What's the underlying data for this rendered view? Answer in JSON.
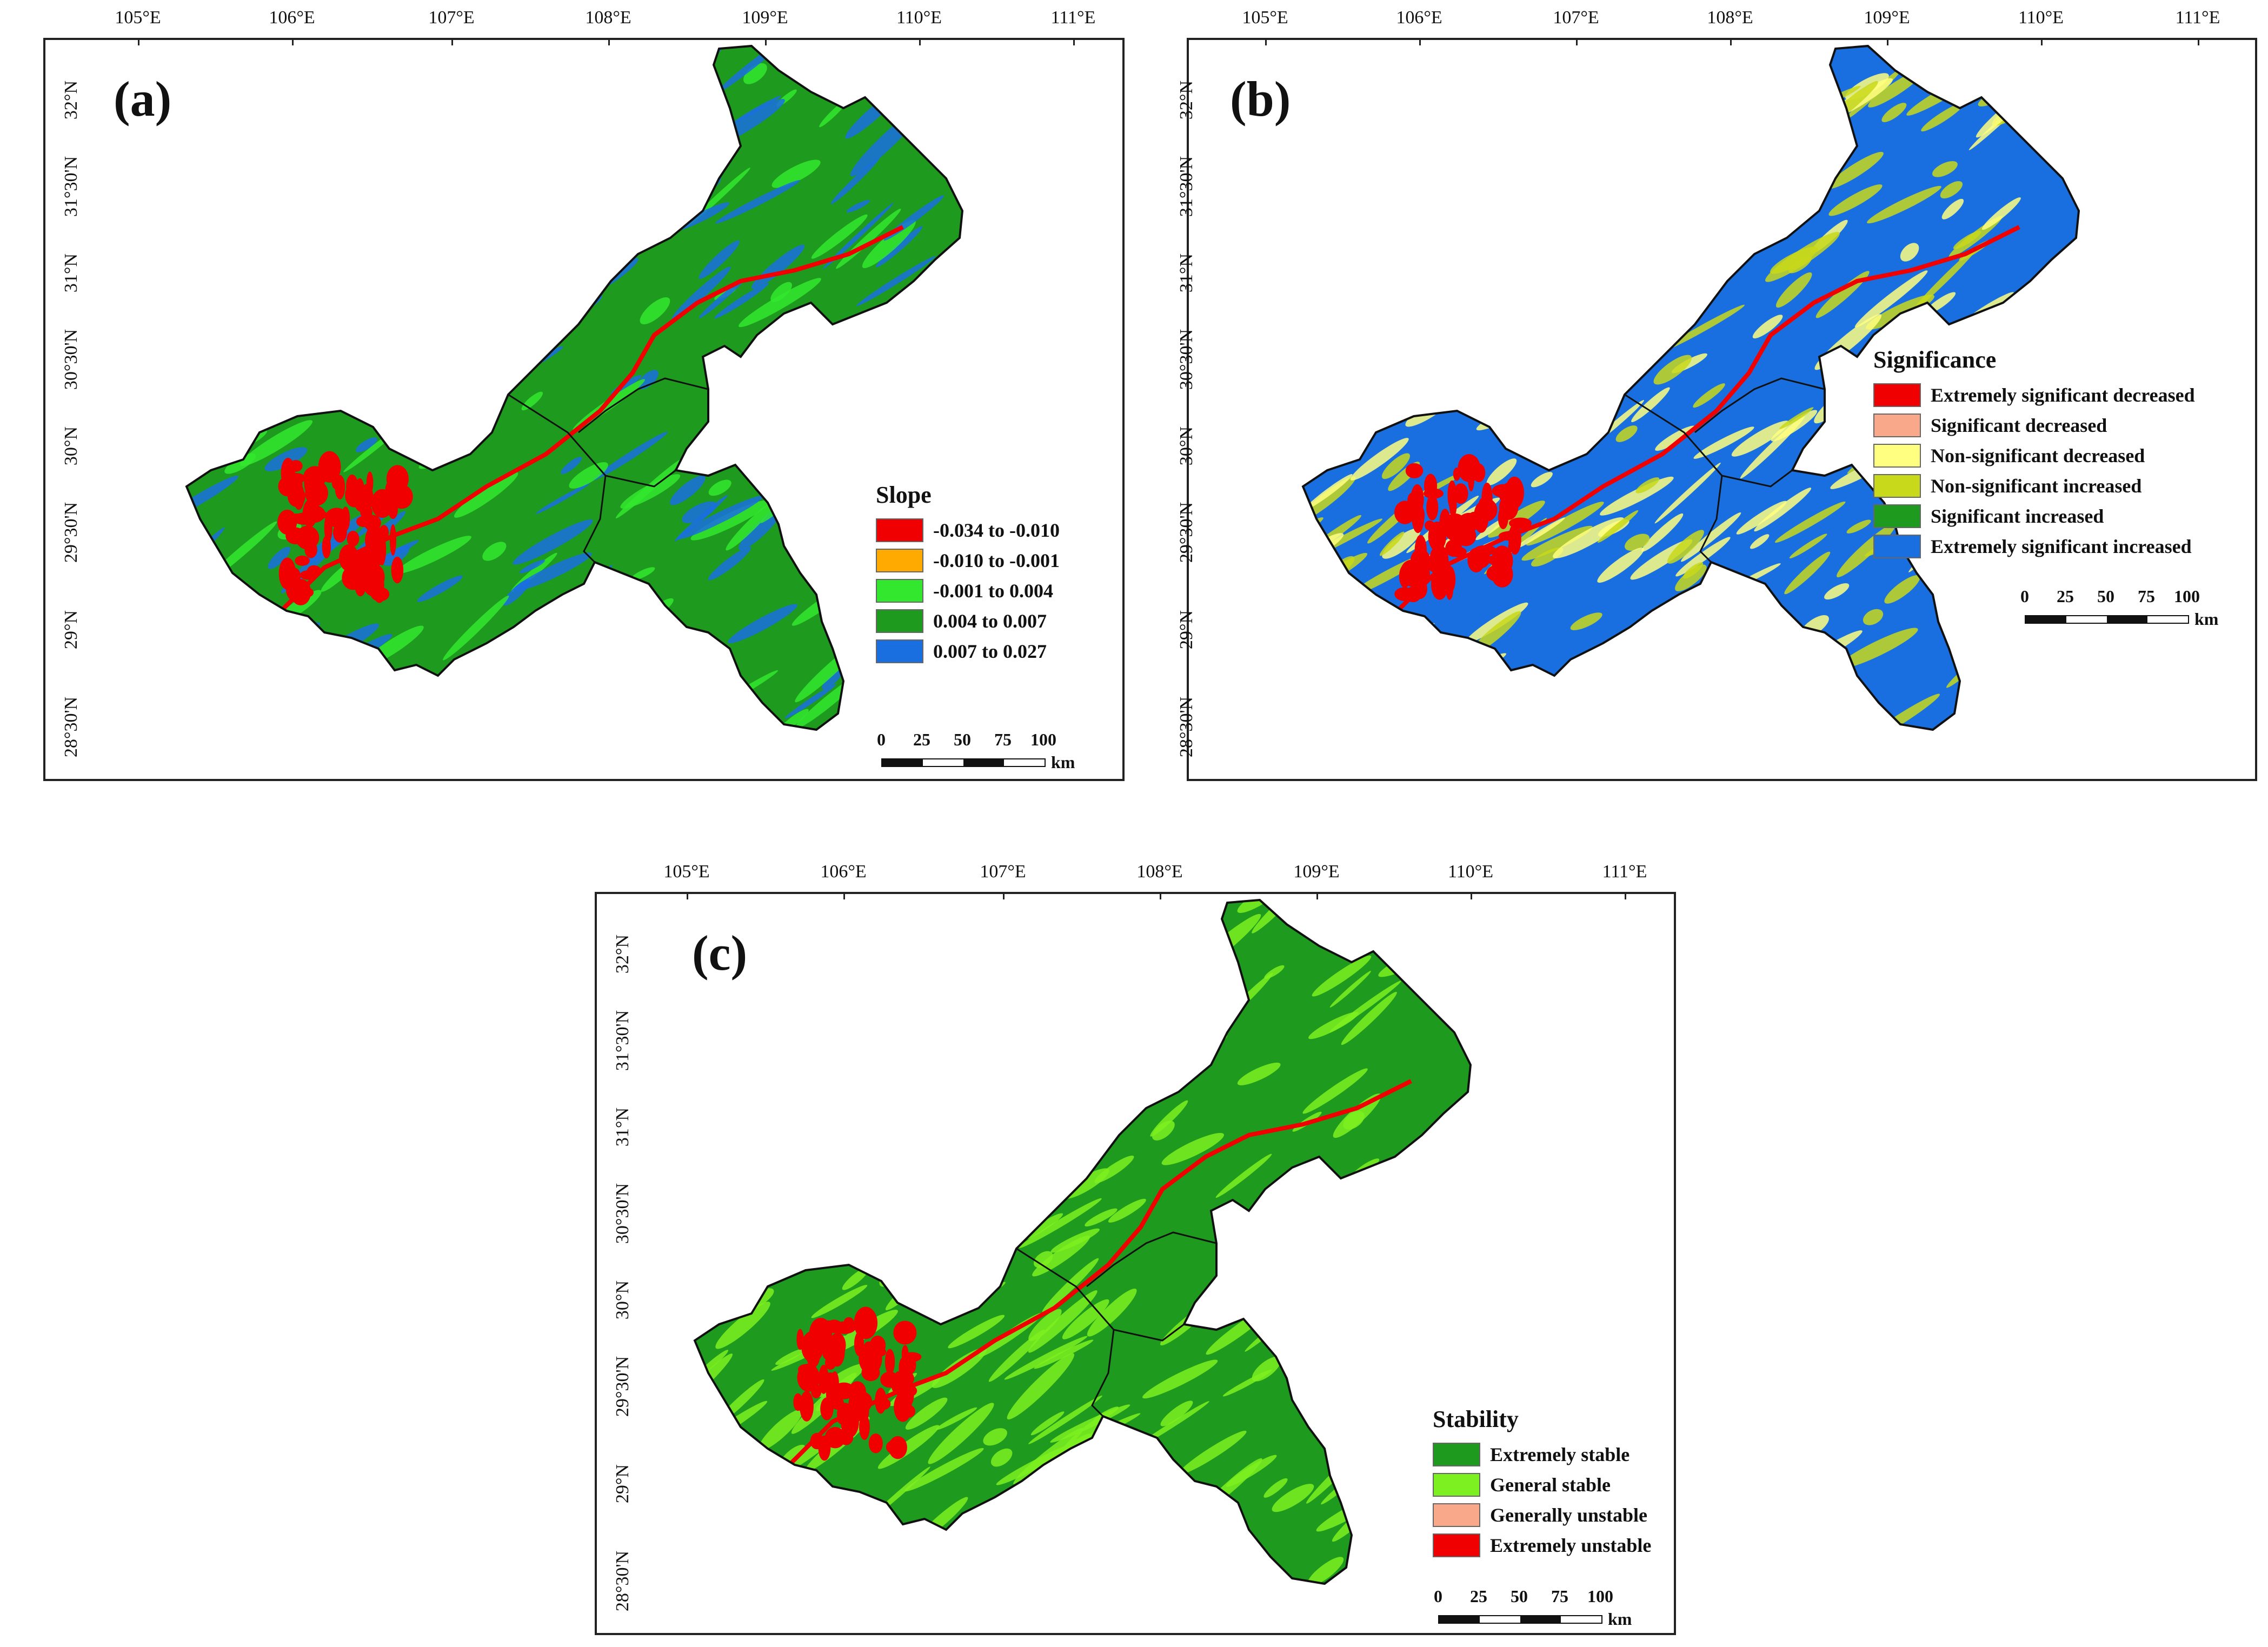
{
  "longitude_labels": [
    "105°E",
    "106°E",
    "107°E",
    "108°E",
    "109°E",
    "110°E",
    "111°E"
  ],
  "latitude_labels": [
    "32°N",
    "31°30'N",
    "31°N",
    "30°30'N",
    "30°N",
    "29°30'N",
    "29°N",
    "28°30'N"
  ],
  "panels": [
    {
      "label": "(a)",
      "legend_title": "Slope",
      "legend": [
        {
          "label": "-0.034 to -0.010",
          "color": "#f00000"
        },
        {
          "label": "-0.010 to -0.001",
          "color": "#ffaa00"
        },
        {
          "label": "-0.001 to 0.004",
          "color": "#33e62e"
        },
        {
          "label": "0.004 to 0.007",
          "color": "#1e9b1e"
        },
        {
          "label": "0.007 to 0.027",
          "color": "#1a6fe0"
        }
      ],
      "map_colors": {
        "base": "#1e9b1e",
        "patch1": "#1a6fe0",
        "patch2": "#33e62e",
        "patch3": "#f00000"
      }
    },
    {
      "label": "(b)",
      "legend_title": "Significance",
      "legend": [
        {
          "label": "Extremely significant decreased",
          "color": "#f00000"
        },
        {
          "label": "Significant decreased",
          "color": "#f9a98a"
        },
        {
          "label": "Non-significant decreased",
          "color": "#ffff80"
        },
        {
          "label": "Non-significant increased",
          "color": "#c8d81a"
        },
        {
          "label": "Significant increased",
          "color": "#1e9b1e"
        },
        {
          "label": "Extremely significant increased",
          "color": "#1a6fe0"
        }
      ],
      "map_colors": {
        "base": "#1a6fe0",
        "patch1": "#c8d81a",
        "patch2": "#ffff80",
        "patch3": "#f00000"
      }
    },
    {
      "label": "(c)",
      "legend_title": "Stability",
      "legend": [
        {
          "label": "Extremely stable",
          "color": "#1e9b1e"
        },
        {
          "label": "General stable",
          "color": "#7cf020"
        },
        {
          "label": "Generally unstable",
          "color": "#f9a98a"
        },
        {
          "label": "Extremely unstable",
          "color": "#f00000"
        }
      ],
      "map_colors": {
        "base": "#1e9b1e",
        "patch1": "#7cf020",
        "patch2": "#7cf020",
        "patch3": "#f00000"
      }
    }
  ],
  "scalebar": {
    "ticks": [
      "0",
      "25",
      "50",
      "75",
      "100"
    ],
    "unit": "km"
  },
  "boundary_color": "#111111"
}
